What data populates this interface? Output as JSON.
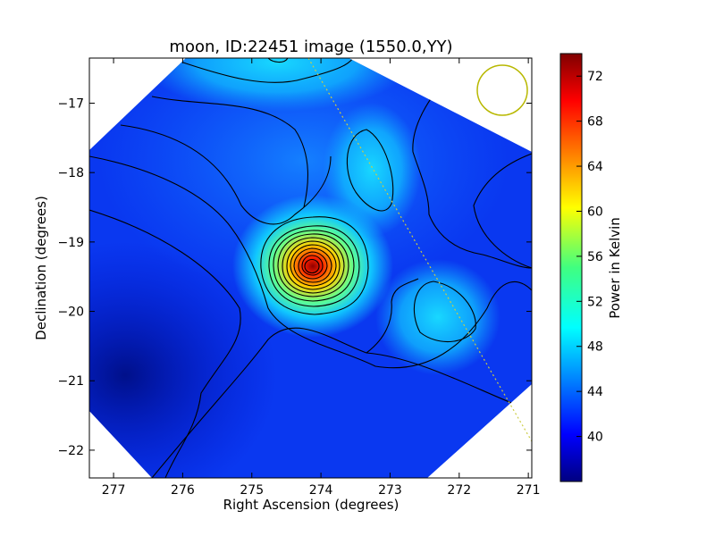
{
  "chart_data": {
    "type": "heatmap",
    "title": "moon, ID:22451 image (1550.0,YY)",
    "xlabel": "Right Ascension (degrees)",
    "ylabel": "Declination (degrees)",
    "xlim": [
      277.35,
      270.95
    ],
    "ylim": [
      -22.4,
      -16.35
    ],
    "x_ticks": [
      "277",
      "276",
      "275",
      "274",
      "273",
      "272",
      "271"
    ],
    "y_ticks": [
      "−17",
      "−18",
      "−19",
      "−20",
      "−21",
      "−22"
    ],
    "colorbar": {
      "label": "Power in Kelvin",
      "range": [
        36,
        74
      ],
      "ticks": [
        "40",
        "44",
        "48",
        "52",
        "56",
        "60",
        "64",
        "68",
        "72"
      ],
      "colormap": "jet"
    },
    "colors": {
      "max_low": "#000080",
      "max_high": "#800000",
      "beam_circle": "#b8b800",
      "ecliptic_line": "#cccc44",
      "contour": "#000000"
    },
    "features": {
      "peak": {
        "ra": 274.1,
        "dec": -19.35,
        "value": 73
      },
      "secondary_maxima": [
        {
          "ra": 274.5,
          "dec": -16.45,
          "value": 49
        },
        {
          "ra": 273.2,
          "dec": -18.0,
          "value": 46
        },
        {
          "ra": 272.2,
          "dec": -20.05,
          "value": 47
        }
      ],
      "background_min": {
        "ra": 277.0,
        "dec": -20.8,
        "value": 37
      },
      "beam": {
        "ra": 271.45,
        "dec": -16.85,
        "radius_deg": 0.37
      },
      "line": [
        [
          274.4,
          -16.35
        ],
        [
          271.0,
          -21.9
        ]
      ]
    }
  }
}
